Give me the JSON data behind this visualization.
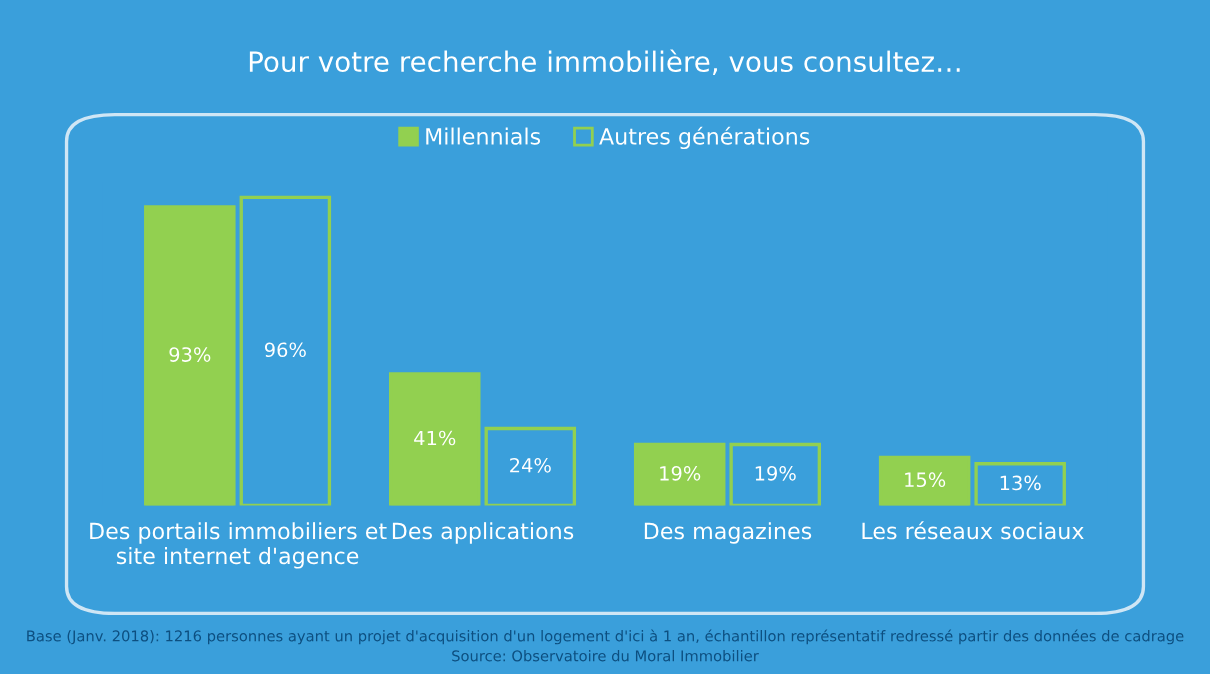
{
  "chart_data": {
    "type": "bar",
    "title": "Pour votre recherche immobilière, vous consultez…",
    "categories": [
      "Des portails immobiliers et\nsite internet d'agence",
      "Des applications",
      "Des magazines",
      "Les réseaux sociaux"
    ],
    "series": [
      {
        "name": "Millennials",
        "color": "#92d050",
        "values": [
          93,
          41,
          19,
          15
        ],
        "value_labels": [
          "93%",
          "41%",
          "19%",
          "15%"
        ]
      },
      {
        "name": "Autres générations",
        "color": "#92d050",
        "values": [
          96,
          24,
          19,
          13
        ],
        "value_labels": [
          "96%",
          "24%",
          "19%",
          "13%"
        ]
      }
    ],
    "legend": "top",
    "grid": false,
    "annotations": [
      "Base (Janv. 2018): 1216 personnes ayant un projet d'acquisition d'un logement d'ici à 1 an, échantillon représentatif redressé partir des données de cadrage",
      "Source: Observatoire du Moral Immobilier"
    ]
  }
}
